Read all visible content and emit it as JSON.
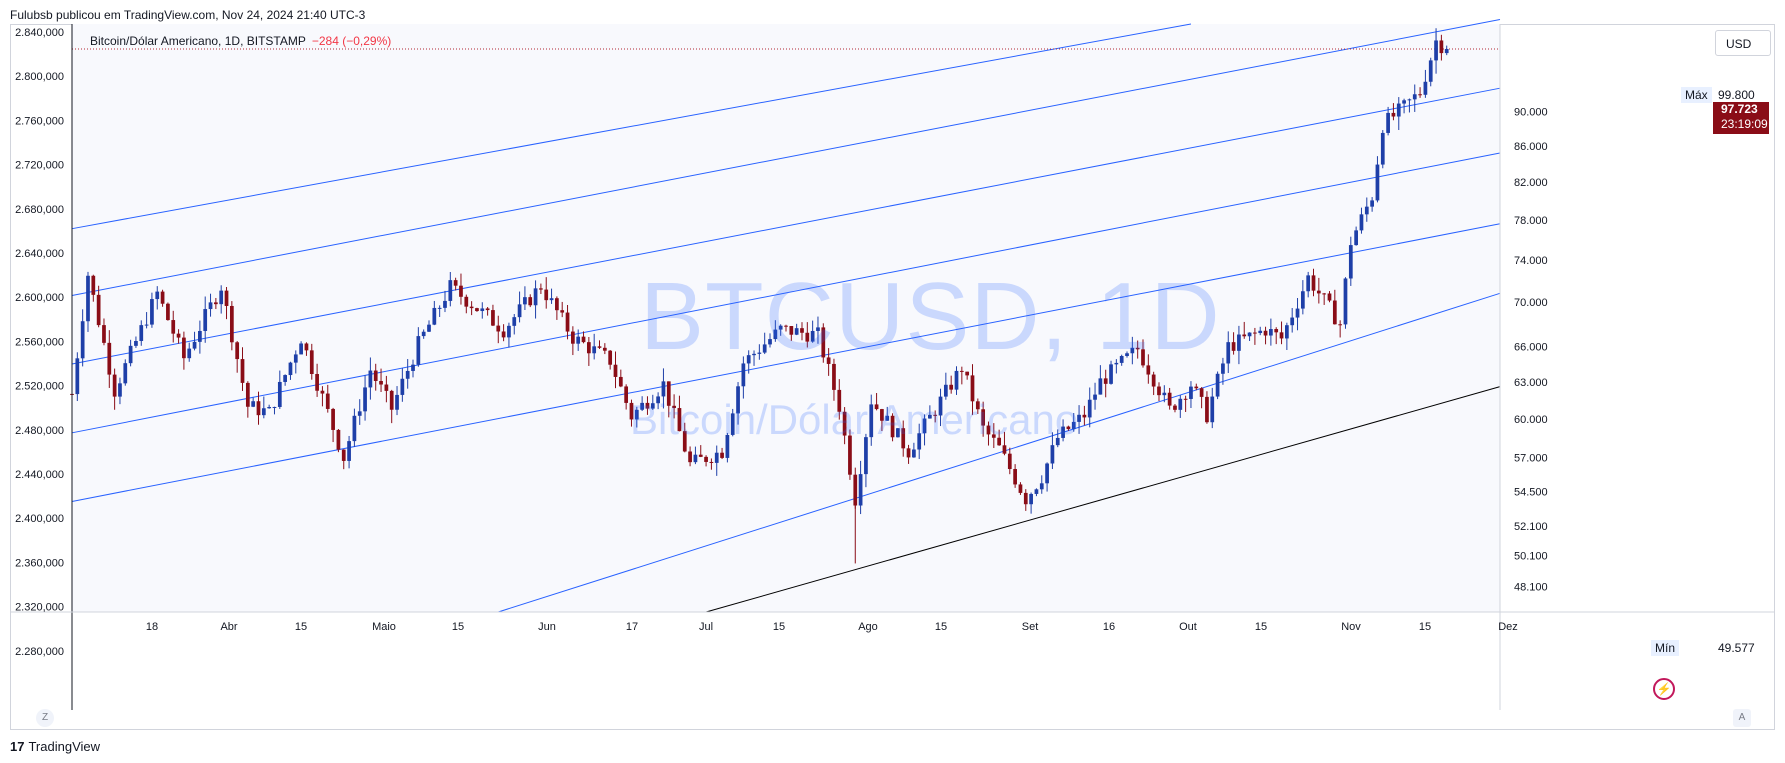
{
  "header": {
    "caption": "Fulubsb publicou em TradingView.com, Nov 24, 2024 21:40 UTC-3"
  },
  "legend": {
    "symbol": "Bitcoin/Dólar Americano, 1D, BITSTAMP",
    "change": "−284 (−0,29%)"
  },
  "watermark": {
    "ticker": "BTCUSD, 1D",
    "name": "Bitcoin/Dólar Americano"
  },
  "toolbar": {
    "currency": "USD",
    "z_label": "Z",
    "a_label": "A"
  },
  "footer": {
    "brand": "TradingView",
    "brand_mark": "17"
  },
  "markers": {
    "max_label": "Máx",
    "max_value": "99.800",
    "min_label": "Mín",
    "min_value": "49.577",
    "last_price": "97.723",
    "countdown": "23:19:09"
  },
  "colors": {
    "up": "#1e3fa8",
    "down": "#8a0d17",
    "channel": "#2962ff",
    "base_line": "#000000",
    "last_price_line": "#b22833"
  },
  "chart_data": {
    "type": "candlestick",
    "log_scale": true,
    "left_axis_ticks": [
      "2.840,000",
      "2.800,000",
      "2.760,000",
      "2.720,000",
      "2.680,000",
      "2.640,000",
      "2.600,000",
      "2.560,000",
      "2.520,000",
      "2.480,000",
      "2.440,000",
      "2.400,000",
      "2.360,000",
      "2.320,000",
      "2.280,000"
    ],
    "right_axis_ticks": [
      "90.000",
      "86.000",
      "82.000",
      "78.000",
      "74.000",
      "70.000",
      "66.000",
      "63.000",
      "60.000",
      "57.000",
      "54.500",
      "52.100",
      "50.100",
      "48.100"
    ],
    "x_ticks": [
      "18",
      "Abr",
      "15",
      "Maio",
      "15",
      "Jun",
      "17",
      "Jul",
      "15",
      "Ago",
      "15",
      "Set",
      "16",
      "Out",
      "15",
      "Nov",
      "15",
      "Dez"
    ],
    "x_range": [
      "2024-03-11",
      "2024-12-04"
    ],
    "y_range": [
      46500,
      101000
    ],
    "last_price": 97723,
    "max": 99800,
    "min": 49577,
    "channel_lines": [
      {
        "from": [
          "2024-03-11",
          77100
        ],
        "to": [
          "2024-10-07",
          101000
        ]
      },
      {
        "from": [
          "2024-03-11",
          70600
        ],
        "to": [
          "2024-12-04",
          101600
        ]
      },
      {
        "from": [
          "2024-03-11",
          64500
        ],
        "to": [
          "2024-12-04",
          92800
        ]
      },
      {
        "from": [
          "2024-03-11",
          58900
        ],
        "to": [
          "2024-12-04",
          85200
        ]
      },
      {
        "from": [
          "2024-03-11",
          53800
        ],
        "to": [
          "2024-12-04",
          77600
        ]
      },
      {
        "from": [
          "2024-05-30",
          46500
        ],
        "to": [
          "2024-12-04",
          70800
        ]
      }
    ],
    "base_line": {
      "from": [
        "2024-07-08",
        46500
      ],
      "to": [
        "2024-12-04",
        62600
      ]
    },
    "anchors": [
      [
        "2024-03-11",
        62000
      ],
      [
        "2024-03-14",
        72600
      ],
      [
        "2024-03-19",
        62300
      ],
      [
        "2024-03-27",
        70800
      ],
      [
        "2024-04-01",
        65000
      ],
      [
        "2024-04-08",
        71500
      ],
      [
        "2024-04-13",
        61000
      ],
      [
        "2024-04-17",
        60500
      ],
      [
        "2024-04-23",
        66800
      ],
      [
        "2024-05-01",
        57000
      ],
      [
        "2024-05-06",
        64000
      ],
      [
        "2024-05-10",
        60800
      ],
      [
        "2024-05-15",
        66200
      ],
      [
        "2024-05-21",
        71400
      ],
      [
        "2024-05-31",
        67500
      ],
      [
        "2024-06-07",
        71500
      ],
      [
        "2024-06-13",
        66800
      ],
      [
        "2024-06-20",
        64800
      ],
      [
        "2024-06-24",
        60200
      ],
      [
        "2024-06-30",
        62800
      ],
      [
        "2024-07-05",
        56500
      ],
      [
        "2024-07-11",
        57500
      ],
      [
        "2024-07-15",
        64600
      ],
      [
        "2024-07-22",
        67500
      ],
      [
        "2024-07-29",
        67000
      ],
      [
        "2024-08-02",
        61000
      ],
      [
        "2024-08-05",
        54000
      ],
      [
        "2024-08-08",
        61500
      ],
      [
        "2024-08-15",
        57500
      ],
      [
        "2024-08-25",
        64200
      ],
      [
        "2024-08-29",
        59200
      ],
      [
        "2024-09-01",
        57700
      ],
      [
        "2024-09-06",
        54000
      ],
      [
        "2024-09-09",
        55600
      ],
      [
        "2024-09-12",
        58500
      ],
      [
        "2024-09-17",
        60300
      ],
      [
        "2024-09-20",
        63000
      ],
      [
        "2024-09-27",
        65800
      ],
      [
        "2024-09-30",
        63300
      ],
      [
        "2024-10-03",
        60700
      ],
      [
        "2024-10-07",
        62800
      ],
      [
        "2024-10-10",
        60300
      ],
      [
        "2024-10-14",
        66000
      ],
      [
        "2024-10-21",
        67500
      ],
      [
        "2024-10-24",
        66700
      ],
      [
        "2024-10-29",
        72300
      ],
      [
        "2024-11-04",
        68000
      ],
      [
        "2024-11-06",
        75800
      ],
      [
        "2024-11-10",
        80500
      ],
      [
        "2024-11-12",
        88400
      ],
      [
        "2024-11-16",
        90500
      ],
      [
        "2024-11-19",
        92300
      ],
      [
        "2024-11-22",
        98800
      ],
      [
        "2024-11-24",
        97723
      ]
    ]
  }
}
